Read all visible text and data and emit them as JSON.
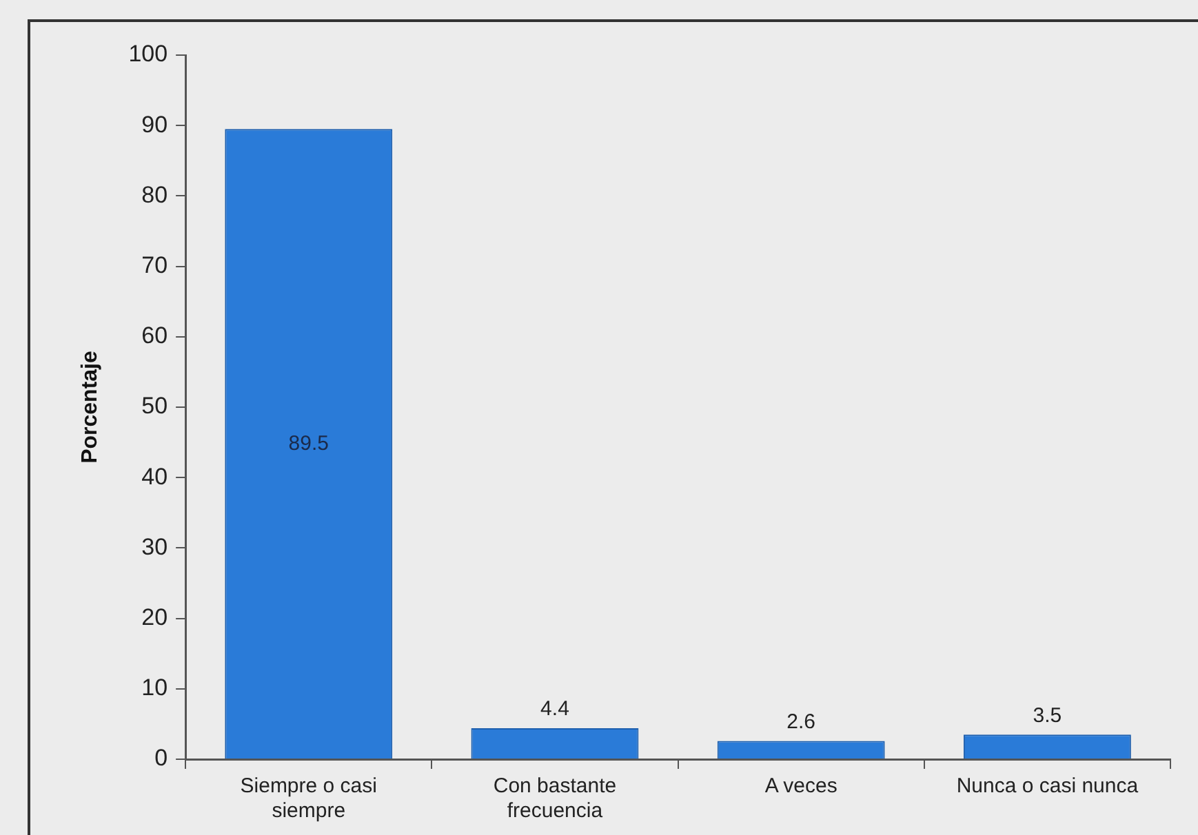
{
  "chart_data": {
    "type": "bar",
    "ylabel": "Porcentaje",
    "categories": [
      "Siempre o casi siempre",
      "Con bastante frecuencia",
      "A veces",
      "Nunca o casi nunca"
    ],
    "values": [
      89.5,
      4.4,
      2.6,
      3.5
    ],
    "color": "#2a7bd8",
    "ylim": [
      0,
      100
    ],
    "yticks": [
      0,
      10,
      20,
      30,
      40,
      50,
      60,
      70,
      80,
      90,
      100
    ],
    "grid": false,
    "legend": false,
    "data_labels": true
  }
}
